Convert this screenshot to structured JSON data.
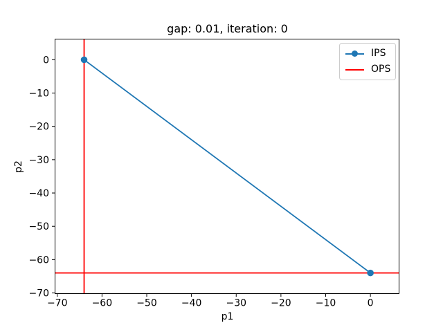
{
  "figure": {
    "background": "#ffffff"
  },
  "chart_data": {
    "type": "line",
    "title": "gap: 0.01, iteration: 0",
    "xlabel": "p1",
    "ylabel": "p2",
    "xlim": [
      -70.5,
      6.4
    ],
    "ylim": [
      -70.2,
      6.2
    ],
    "xticks": [
      -70,
      -60,
      -50,
      -40,
      -30,
      -20,
      -10,
      0
    ],
    "yticks": [
      0,
      -10,
      -20,
      -30,
      -40,
      -50,
      -60,
      -70
    ],
    "grid": false,
    "legend_position": "upper right",
    "axis_color": "#000000",
    "series": [
      {
        "name": "IPS",
        "type": "line",
        "marker": "circle",
        "color": "#1f77b4",
        "points": [
          [
            -64,
            0
          ],
          [
            0,
            -64
          ]
        ]
      },
      {
        "name": "OPS",
        "type": "reference-lines",
        "color": "#ff0000",
        "vline_x": -64,
        "hline_y": -64
      }
    ]
  }
}
